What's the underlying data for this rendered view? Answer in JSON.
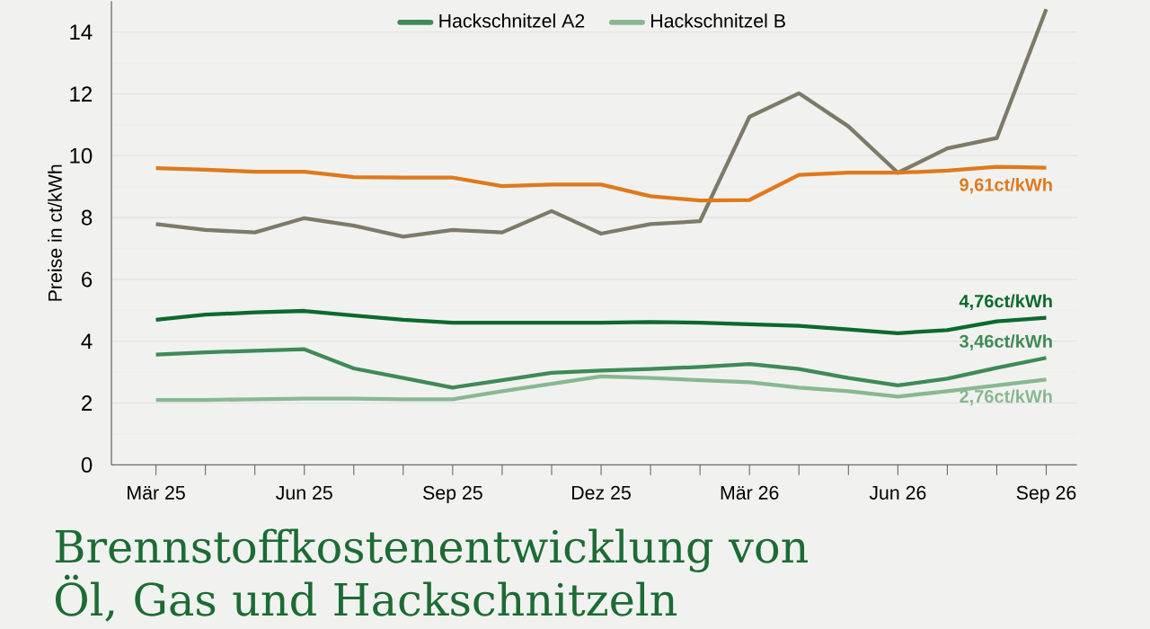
{
  "chart_data": {
    "type": "line",
    "title": "Brennstoffkostenentwicklung von Öl, Gas und Hackschnitzeln",
    "ylabel": "Preise in ct/kWh",
    "categories": [
      "Mär 25",
      null,
      null,
      "Jun 25",
      null,
      null,
      "Sep 25",
      null,
      null,
      "Dez 25",
      null,
      null,
      "Mär 26",
      null,
      null,
      "Jun 26",
      null,
      null,
      "Sep 26"
    ],
    "series": [
      {
        "color": "#7d7a68",
        "values": [
          7.79,
          7.6,
          7.52,
          7.98,
          7.74,
          7.38,
          7.6,
          7.52,
          8.21,
          7.48,
          7.79,
          7.88,
          11.26,
          12.02,
          10.95,
          9.45,
          10.24,
          10.57,
          14.74
        ]
      },
      {
        "color": "#e0791c",
        "values": [
          9.6,
          9.55,
          9.48,
          9.48,
          9.31,
          9.29,
          9.29,
          9.02,
          9.07,
          9.07,
          8.69,
          8.55,
          8.57,
          9.38,
          9.45,
          9.45,
          9.52,
          9.64,
          9.61
        ]
      },
      {
        "color": "#0b6a2c",
        "values": [
          4.69,
          4.86,
          4.93,
          4.98,
          4.83,
          4.69,
          4.6,
          4.6,
          4.6,
          4.6,
          4.62,
          4.6,
          4.55,
          4.5,
          4.38,
          4.26,
          4.36,
          4.64,
          4.76
        ]
      },
      {
        "name": "Hackschnitzel A2",
        "color": "#3f8a57",
        "values": [
          3.57,
          3.64,
          3.69,
          3.74,
          3.12,
          2.81,
          2.5,
          2.74,
          2.98,
          3.05,
          3.1,
          3.17,
          3.26,
          3.1,
          2.81,
          2.57,
          2.79,
          3.14,
          3.46
        ]
      },
      {
        "name": "Hackschnitzel B",
        "color": "#88b892",
        "values": [
          2.1,
          2.1,
          2.12,
          2.14,
          2.14,
          2.12,
          2.12,
          2.38,
          2.62,
          2.86,
          2.81,
          2.74,
          2.67,
          2.5,
          2.38,
          2.21,
          2.38,
          2.57,
          2.76
        ]
      }
    ],
    "ylim": [
      0,
      15
    ],
    "yticks": [
      0,
      2,
      4,
      6,
      8,
      10,
      12,
      14
    ],
    "grid": "y",
    "legend": "top",
    "marker": "none",
    "line_style": "solid",
    "annotations": [
      {
        "text": "9,61ct/kWh",
        "x": "Sep 26",
        "y": 9.61
      },
      {
        "text": "4,76ct/kWh",
        "x": "Sep 26",
        "y": 4.76
      },
      {
        "text": "3,46ct/kWh",
        "x": "Sep 26",
        "y": 3.46
      },
      {
        "text": "2,76ct/kWh",
        "x": "Sep 26",
        "y": 2.76
      }
    ]
  }
}
